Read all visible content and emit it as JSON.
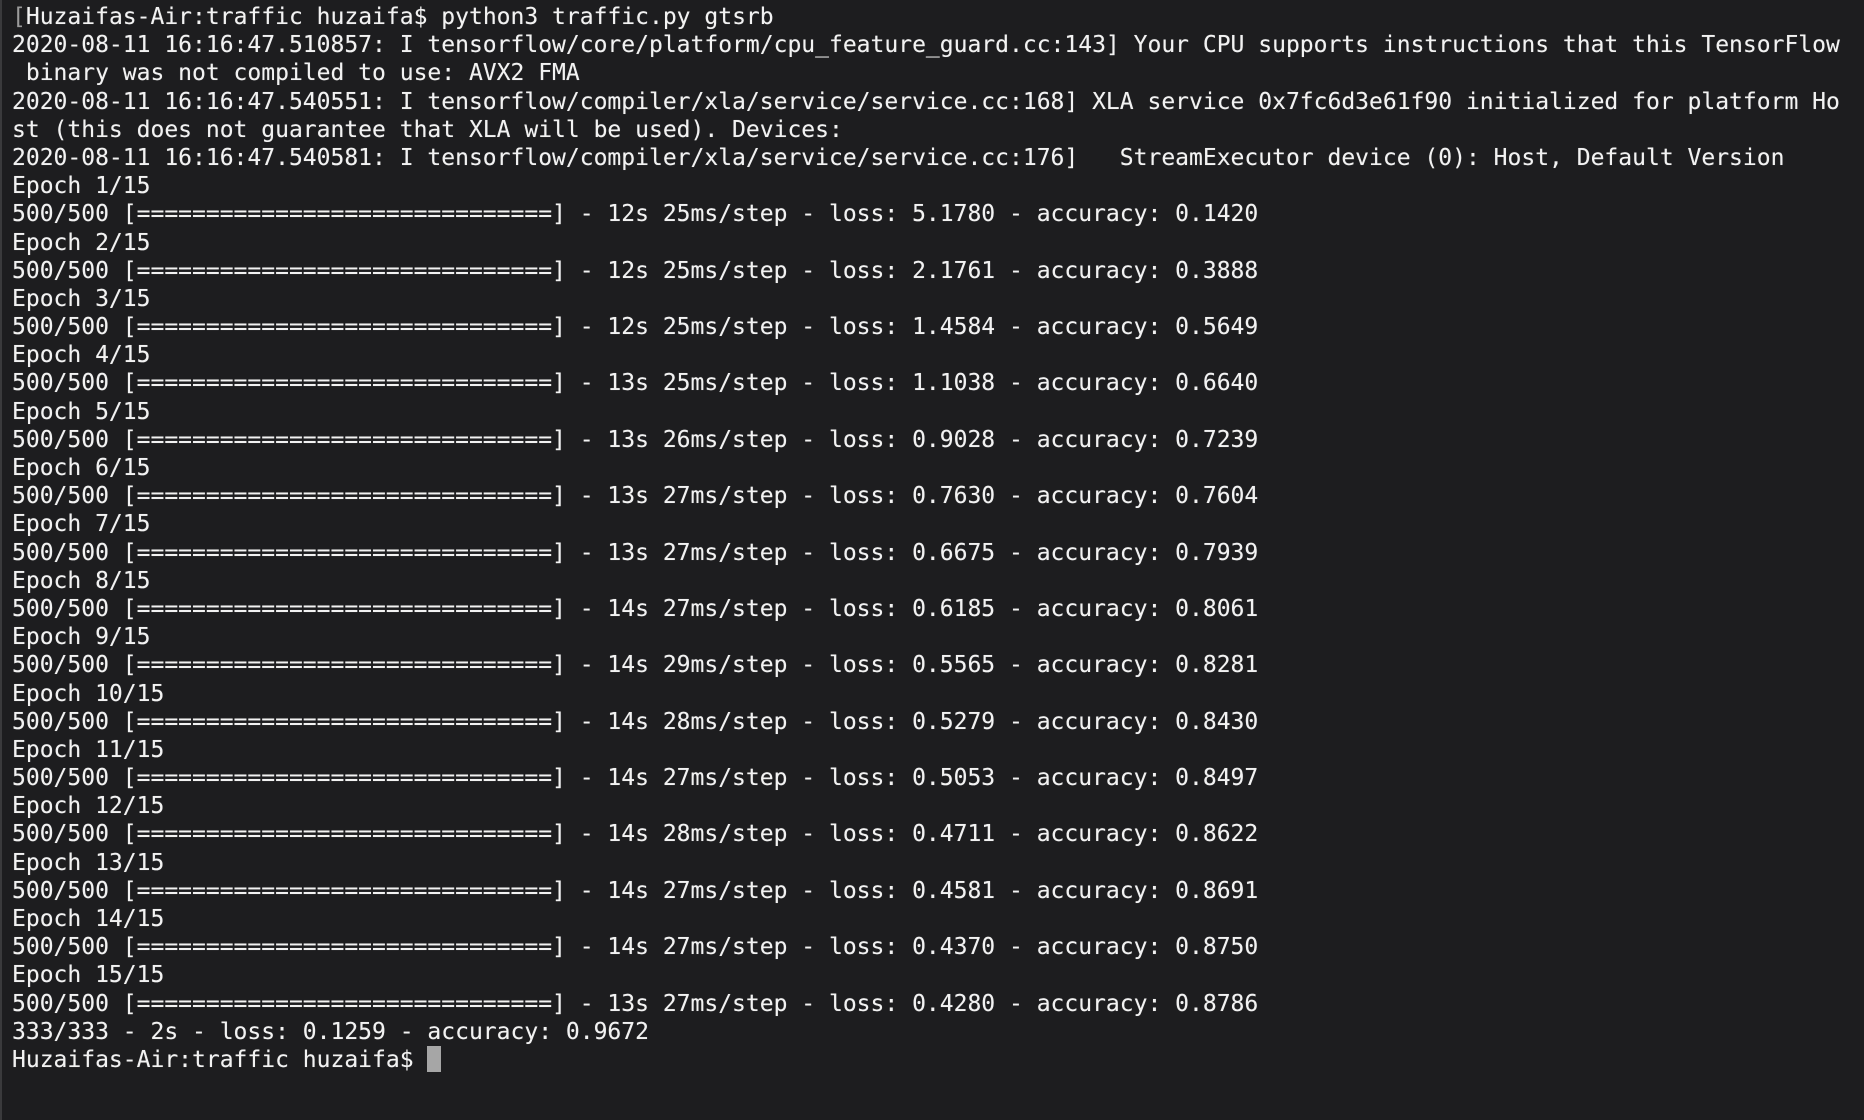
{
  "session": {
    "colors": {
      "background": "#1d1d1f",
      "foreground": "#f2f2f2",
      "marker_dim": "#9b9b9b",
      "cursor": "#a6a6a6",
      "window_edge": "#3a3a3c"
    },
    "command_row": {
      "marker": "[",
      "prompt": "Huzaifas-Air:traffic huzaifa$ ",
      "command": "python3 traffic.py gtsrb"
    },
    "tf_logs": [
      "2020-08-11 16:16:47.510857: I tensorflow/core/platform/cpu_feature_guard.cc:143] Your CPU supports instructions that this TensorFlow",
      " binary was not compiled to use: AVX2 FMA",
      "2020-08-11 16:16:47.540551: I tensorflow/compiler/xla/service/service.cc:168] XLA service 0x7fc6d3e61f90 initialized for platform Ho",
      "st (this does not guarantee that XLA will be used). Devices:",
      "2020-08-11 16:16:47.540581: I tensorflow/compiler/xla/service/service.cc:176]   StreamExecutor device (0): Host, Default Version"
    ],
    "format": {
      "separator": " - ",
      "loss_prefix": "loss: ",
      "accuracy_prefix": "accuracy: "
    },
    "training": {
      "steps_label": "500/500",
      "bar": "[==============================]",
      "epochs": [
        {
          "label": "Epoch 1/15",
          "time": "12s",
          "step_time": "25ms/step",
          "loss": "5.1780",
          "accuracy": "0.1420"
        },
        {
          "label": "Epoch 2/15",
          "time": "12s",
          "step_time": "25ms/step",
          "loss": "2.1761",
          "accuracy": "0.3888"
        },
        {
          "label": "Epoch 3/15",
          "time": "12s",
          "step_time": "25ms/step",
          "loss": "1.4584",
          "accuracy": "0.5649"
        },
        {
          "label": "Epoch 4/15",
          "time": "13s",
          "step_time": "25ms/step",
          "loss": "1.1038",
          "accuracy": "0.6640"
        },
        {
          "label": "Epoch 5/15",
          "time": "13s",
          "step_time": "26ms/step",
          "loss": "0.9028",
          "accuracy": "0.7239"
        },
        {
          "label": "Epoch 6/15",
          "time": "13s",
          "step_time": "27ms/step",
          "loss": "0.7630",
          "accuracy": "0.7604"
        },
        {
          "label": "Epoch 7/15",
          "time": "13s",
          "step_time": "27ms/step",
          "loss": "0.6675",
          "accuracy": "0.7939"
        },
        {
          "label": "Epoch 8/15",
          "time": "14s",
          "step_time": "27ms/step",
          "loss": "0.6185",
          "accuracy": "0.8061"
        },
        {
          "label": "Epoch 9/15",
          "time": "14s",
          "step_time": "29ms/step",
          "loss": "0.5565",
          "accuracy": "0.8281"
        },
        {
          "label": "Epoch 10/15",
          "time": "14s",
          "step_time": "28ms/step",
          "loss": "0.5279",
          "accuracy": "0.8430"
        },
        {
          "label": "Epoch 11/15",
          "time": "14s",
          "step_time": "27ms/step",
          "loss": "0.5053",
          "accuracy": "0.8497"
        },
        {
          "label": "Epoch 12/15",
          "time": "14s",
          "step_time": "28ms/step",
          "loss": "0.4711",
          "accuracy": "0.8622"
        },
        {
          "label": "Epoch 13/15",
          "time": "14s",
          "step_time": "27ms/step",
          "loss": "0.4581",
          "accuracy": "0.8691"
        },
        {
          "label": "Epoch 14/15",
          "time": "14s",
          "step_time": "27ms/step",
          "loss": "0.4370",
          "accuracy": "0.8750"
        },
        {
          "label": "Epoch 15/15",
          "time": "13s",
          "step_time": "27ms/step",
          "loss": "0.4280",
          "accuracy": "0.8786"
        }
      ]
    },
    "evaluation": {
      "steps": "333/333",
      "time": "2s",
      "loss": "0.1259",
      "accuracy": "0.9672"
    },
    "final_prompt": "Huzaifas-Air:traffic huzaifa$ "
  }
}
